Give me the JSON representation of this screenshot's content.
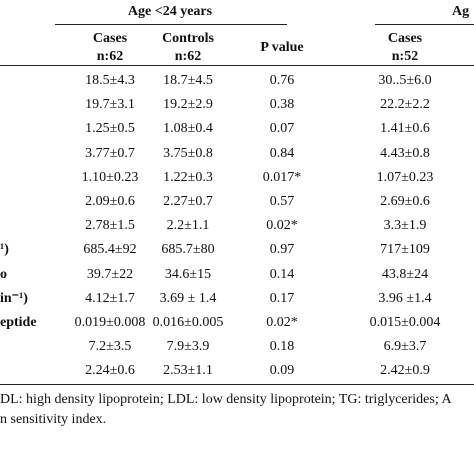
{
  "table": {
    "groups": [
      "Age <24 years",
      "Ag"
    ],
    "columns": [
      [
        "Cases",
        "n:62"
      ],
      [
        "Controls",
        "n:62"
      ],
      [
        "P value"
      ],
      [
        "Cases",
        "n:52"
      ]
    ],
    "rows": [
      {
        "cells": [
          "18.5±4.3",
          "18.7±4.5",
          "0.76",
          "30..5±6.0"
        ]
      },
      {
        "cells": [
          "19.7±3.1",
          "19.2±2.9",
          "0.38",
          "22.2±2.2"
        ]
      },
      {
        "cells": [
          "1.25±0.5",
          "1.08±0.4",
          "0.07",
          "1.41±0.6"
        ]
      },
      {
        "cells": [
          "3.77±0.7",
          "3.75±0.8",
          "0.84",
          "4.43±0.8"
        ]
      },
      {
        "cells": [
          "1.10±0.23",
          "1.22±0.3",
          "0.017*",
          "1.07±0.23"
        ]
      },
      {
        "cells": [
          "2.09±0.6",
          "2.27±0.7",
          "0.57",
          "2.69±0.6"
        ]
      },
      {
        "cells": [
          "2.78±1.5",
          "2.2±1.1",
          "0.02*",
          "3.3±1.9"
        ]
      },
      {
        "label": "¹)",
        "cells": [
          "685.4±92",
          "685.7±80",
          "0.97",
          "717±109"
        ]
      },
      {
        "label": "o",
        "cells": [
          "39.7±22",
          "34.6±15",
          "0.14",
          "43.8±24"
        ]
      },
      {
        "label": "in⁻¹)",
        "cells": [
          "4.12±1.7",
          "3.69 ± 1.4",
          "0.17",
          "3.96 ±1.4"
        ]
      },
      {
        "label": "eptide",
        "cells": [
          "0.019±0.008",
          "0.016±0.005",
          "0.02*",
          "0.015±0.004"
        ]
      },
      {
        "cells": [
          "7.2±3.5",
          "7.9±3.9",
          "0.18",
          "6.9±3.7"
        ]
      },
      {
        "cells": [
          "2.24±0.6",
          "2.53±1.1",
          "0.09",
          "2.42±0.9"
        ]
      }
    ],
    "footnotes": [
      "DL: high density lipoprotein; LDL: low density lipoprotein; TG: triglycerides; A",
      "n sensitivity index."
    ]
  }
}
